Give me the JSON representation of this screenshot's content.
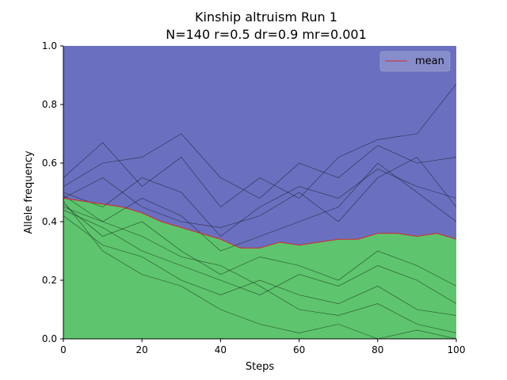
{
  "chart_data": {
    "type": "area",
    "title_line1": "Kinship altruism Run 1",
    "title_line2": "N=140 r=0.5 dr=0.9 mr=0.001",
    "xlabel": "Steps",
    "ylabel": "Allele frequency",
    "xlim": [
      0,
      100
    ],
    "ylim": [
      0,
      1
    ],
    "xticks": [
      0,
      20,
      40,
      60,
      80,
      100
    ],
    "yticks": [
      0.0,
      0.2,
      0.4,
      0.6,
      0.8,
      1.0
    ],
    "xtick_labels": [
      "0",
      "20",
      "40",
      "60",
      "80",
      "100"
    ],
    "ytick_labels": [
      "0.0",
      "0.2",
      "0.4",
      "0.6",
      "0.8",
      "1.0"
    ],
    "legend": {
      "position": "top-right",
      "entries": [
        {
          "label": "mean",
          "color": "#d62728"
        }
      ]
    },
    "colors": {
      "upper_area": "#6a70bf",
      "lower_area": "#5ec46e",
      "mean_line": "#d62728",
      "run_lines": "#000000"
    },
    "mean": {
      "x": [
        0,
        5,
        10,
        15,
        20,
        25,
        30,
        35,
        40,
        45,
        50,
        55,
        60,
        65,
        70,
        75,
        80,
        85,
        90,
        95,
        100
      ],
      "y": [
        0.48,
        0.47,
        0.46,
        0.45,
        0.43,
        0.4,
        0.38,
        0.36,
        0.34,
        0.31,
        0.31,
        0.33,
        0.32,
        0.33,
        0.34,
        0.34,
        0.36,
        0.36,
        0.35,
        0.36,
        0.34
      ]
    },
    "runs": [
      {
        "x": [
          0,
          10,
          20,
          30,
          40,
          50,
          60,
          70,
          80,
          90,
          100
        ],
        "y": [
          0.55,
          0.67,
          0.52,
          0.62,
          0.45,
          0.55,
          0.48,
          0.62,
          0.68,
          0.7,
          0.87
        ]
      },
      {
        "x": [
          0,
          10,
          20,
          30,
          40,
          50,
          60,
          70,
          80,
          90,
          100
        ],
        "y": [
          0.52,
          0.6,
          0.62,
          0.7,
          0.55,
          0.48,
          0.6,
          0.55,
          0.66,
          0.6,
          0.62
        ]
      },
      {
        "x": [
          0,
          10,
          20,
          30,
          40,
          50,
          60,
          70,
          80,
          90,
          100
        ],
        "y": [
          0.5,
          0.45,
          0.55,
          0.5,
          0.35,
          0.45,
          0.52,
          0.48,
          0.58,
          0.52,
          0.48
        ]
      },
      {
        "x": [
          0,
          10,
          20,
          30,
          40,
          50,
          60,
          70,
          80,
          90,
          100
        ],
        "y": [
          0.48,
          0.55,
          0.45,
          0.4,
          0.38,
          0.42,
          0.5,
          0.4,
          0.55,
          0.62,
          0.45
        ]
      },
      {
        "x": [
          0,
          10,
          20,
          30,
          40,
          50,
          60,
          70,
          80,
          90,
          100
        ],
        "y": [
          0.45,
          0.4,
          0.48,
          0.42,
          0.3,
          0.35,
          0.4,
          0.45,
          0.6,
          0.5,
          0.4
        ]
      },
      {
        "x": [
          0,
          10,
          20,
          30,
          40,
          50,
          60,
          70,
          80,
          90,
          100
        ],
        "y": [
          0.46,
          0.35,
          0.4,
          0.3,
          0.22,
          0.28,
          0.25,
          0.2,
          0.3,
          0.25,
          0.18
        ]
      },
      {
        "x": [
          0,
          10,
          20,
          30,
          40,
          50,
          60,
          70,
          80,
          90,
          100
        ],
        "y": [
          0.44,
          0.38,
          0.3,
          0.25,
          0.2,
          0.15,
          0.22,
          0.18,
          0.25,
          0.2,
          0.12
        ]
      },
      {
        "x": [
          0,
          10,
          20,
          30,
          40,
          50,
          60,
          70,
          80,
          90,
          100
        ],
        "y": [
          0.42,
          0.32,
          0.28,
          0.2,
          0.15,
          0.2,
          0.15,
          0.12,
          0.18,
          0.1,
          0.08
        ]
      },
      {
        "x": [
          0,
          10,
          20,
          30,
          40,
          50,
          60,
          70,
          80,
          90,
          100
        ],
        "y": [
          0.47,
          0.3,
          0.22,
          0.18,
          0.1,
          0.05,
          0.02,
          0.05,
          0.0,
          0.03,
          0.0
        ]
      },
      {
        "x": [
          0,
          10,
          20,
          30,
          40,
          50,
          60,
          70,
          80,
          90,
          100
        ],
        "y": [
          0.49,
          0.4,
          0.35,
          0.28,
          0.25,
          0.18,
          0.1,
          0.08,
          0.12,
          0.05,
          0.02
        ]
      }
    ]
  }
}
